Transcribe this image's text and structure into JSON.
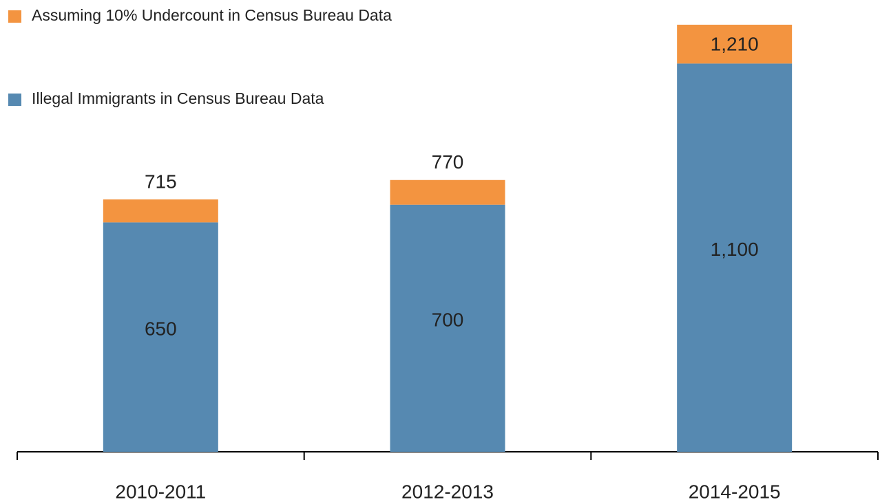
{
  "chart_data": {
    "type": "stacked-bar",
    "categories": [
      "2010-2011",
      "2012-2013",
      "2014-2015"
    ],
    "series": [
      {
        "name": "Illegal Immigrants in Census Bureau Data",
        "color": "#5689b1",
        "values": [
          650,
          700,
          1100
        ],
        "value_labels": [
          "650",
          "700",
          "1,100"
        ]
      },
      {
        "name": "Assuming 10% Undercount in Census Bureau Data",
        "color": "#f39440",
        "values": [
          65,
          70,
          110
        ]
      }
    ],
    "totals": [
      715,
      770,
      1210
    ],
    "total_labels": [
      "715",
      "770",
      "1,210"
    ],
    "ylim": [
      0,
      1280
    ]
  }
}
